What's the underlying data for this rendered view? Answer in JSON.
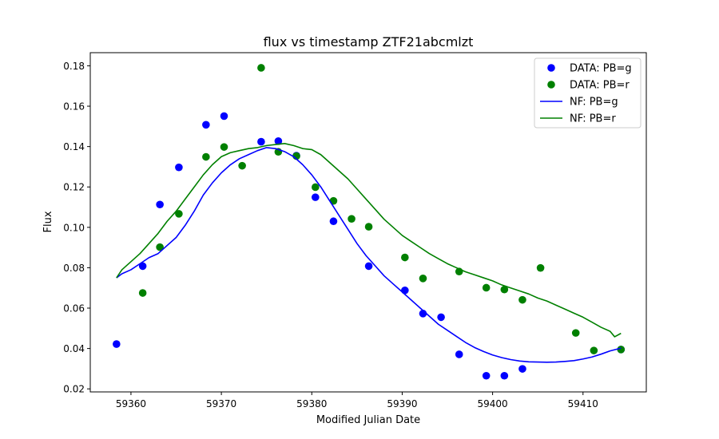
{
  "chart_data": {
    "type": "scatter",
    "title": "flux vs timestamp ZTF21abcmlzt",
    "xlabel": "Modified Julian Date",
    "ylabel": "Flux",
    "xlim": [
      59355.5,
      59417
    ],
    "ylim": [
      0.0185,
      0.1865
    ],
    "xticks": [
      59360,
      59370,
      59380,
      59390,
      59400,
      59410
    ],
    "yticks": [
      0.02,
      0.04,
      0.06,
      0.08,
      0.1,
      0.12,
      0.14,
      0.16,
      0.18
    ],
    "ytick_labels": [
      "0.02",
      "0.04",
      "0.06",
      "0.08",
      "0.10",
      "0.12",
      "0.14",
      "0.16",
      "0.18"
    ],
    "legend_position": "top-right",
    "grid": false,
    "colors": {
      "g": "#0000ff",
      "r": "#008000"
    },
    "series": [
      {
        "name": "DATA: PB=g",
        "kind": "scatter",
        "color": "#0000ff",
        "x": [
          59358.4,
          59361.3,
          59363.2,
          59365.3,
          59368.3,
          59370.3,
          59374.4,
          59376.3,
          59378.3,
          59380.4,
          59382.4,
          59386.3,
          59390.3,
          59392.3,
          59394.3,
          59396.3,
          59399.3,
          59401.3,
          59403.3,
          59414.2
        ],
        "y": [
          0.0422,
          0.0808,
          0.1113,
          0.1297,
          0.1508,
          0.1551,
          0.1424,
          0.1427,
          0.1355,
          0.1149,
          0.103,
          0.0808,
          0.0688,
          0.0573,
          0.0555,
          0.0371,
          0.0265,
          0.0265,
          0.0299,
          0.0395
        ]
      },
      {
        "name": "DATA: PB=r",
        "kind": "scatter",
        "color": "#008000",
        "x": [
          59361.3,
          59363.2,
          59365.3,
          59368.3,
          59370.3,
          59372.3,
          59374.4,
          59376.3,
          59378.3,
          59380.4,
          59382.4,
          59384.4,
          59386.3,
          59390.3,
          59392.3,
          59396.3,
          59399.3,
          59401.3,
          59403.3,
          59405.3,
          59409.2,
          59411.2,
          59414.2
        ],
        "y": [
          0.0675,
          0.0902,
          0.1067,
          0.1349,
          0.1398,
          0.1305,
          0.179,
          0.1374,
          0.1353,
          0.1199,
          0.1131,
          0.1042,
          0.1003,
          0.0851,
          0.0747,
          0.0781,
          0.0701,
          0.0692,
          0.0641,
          0.0799,
          0.0477,
          0.039,
          0.0395
        ]
      },
      {
        "name": "NF: PB=g",
        "kind": "line",
        "color": "#0000ff",
        "x": [
          59358.4,
          59359,
          59360,
          59361,
          59362,
          59363,
          59364,
          59365,
          59366,
          59367,
          59368,
          59369,
          59370,
          59371,
          59372,
          59373,
          59374,
          59375,
          59376,
          59377,
          59378,
          59379,
          59380,
          59381,
          59382,
          59383,
          59384,
          59385,
          59386,
          59387,
          59388,
          59389,
          59390,
          59391,
          59392,
          59393,
          59394,
          59395,
          59396,
          59397,
          59398,
          59399,
          59400,
          59401,
          59402,
          59403,
          59404,
          59405,
          59406,
          59407,
          59408,
          59409,
          59410,
          59411,
          59412,
          59413,
          59414.2
        ],
        "y": [
          0.075,
          0.077,
          0.079,
          0.082,
          0.085,
          0.087,
          0.091,
          0.095,
          0.101,
          0.108,
          0.116,
          0.122,
          0.127,
          0.131,
          0.134,
          0.136,
          0.138,
          0.1395,
          0.139,
          0.1375,
          0.135,
          0.131,
          0.126,
          0.12,
          0.113,
          0.106,
          0.099,
          0.092,
          0.086,
          0.081,
          0.076,
          0.072,
          0.068,
          0.064,
          0.06,
          0.056,
          0.052,
          0.049,
          0.046,
          0.043,
          0.0405,
          0.0385,
          0.0368,
          0.0355,
          0.0345,
          0.0338,
          0.0334,
          0.0333,
          0.0332,
          0.0333,
          0.0336,
          0.034,
          0.0348,
          0.0358,
          0.0372,
          0.0388,
          0.0402
        ]
      },
      {
        "name": "NF: PB=r",
        "kind": "line",
        "color": "#008000",
        "x": [
          59358.4,
          59359,
          59360,
          59361,
          59362,
          59363,
          59364,
          59365,
          59366,
          59367,
          59368,
          59369,
          59370,
          59371,
          59372,
          59373,
          59374,
          59375,
          59376,
          59377,
          59378,
          59379,
          59380,
          59381,
          59382,
          59383,
          59384,
          59385,
          59386,
          59387,
          59388,
          59389,
          59390,
          59391,
          59392,
          59393,
          59394,
          59395,
          59396,
          59397,
          59398,
          59399,
          59400,
          59401,
          59402,
          59403,
          59404,
          59405,
          59406,
          59407,
          59408,
          59409,
          59410,
          59411,
          59412,
          59413,
          59413.5,
          59414.2
        ],
        "y": [
          0.075,
          0.079,
          0.083,
          0.087,
          0.092,
          0.097,
          0.103,
          0.108,
          0.114,
          0.12,
          0.126,
          0.131,
          0.135,
          0.137,
          0.138,
          0.139,
          0.1395,
          0.1405,
          0.141,
          0.1415,
          0.1405,
          0.139,
          0.1385,
          0.136,
          0.132,
          0.128,
          0.124,
          0.119,
          0.114,
          0.109,
          0.104,
          0.1,
          0.096,
          0.093,
          0.09,
          0.087,
          0.0845,
          0.082,
          0.08,
          0.078,
          0.0765,
          0.075,
          0.0735,
          0.0715,
          0.07,
          0.0685,
          0.067,
          0.065,
          0.0635,
          0.0615,
          0.0595,
          0.0575,
          0.0555,
          0.053,
          0.0505,
          0.0485,
          0.0458,
          0.0475
        ]
      }
    ]
  }
}
